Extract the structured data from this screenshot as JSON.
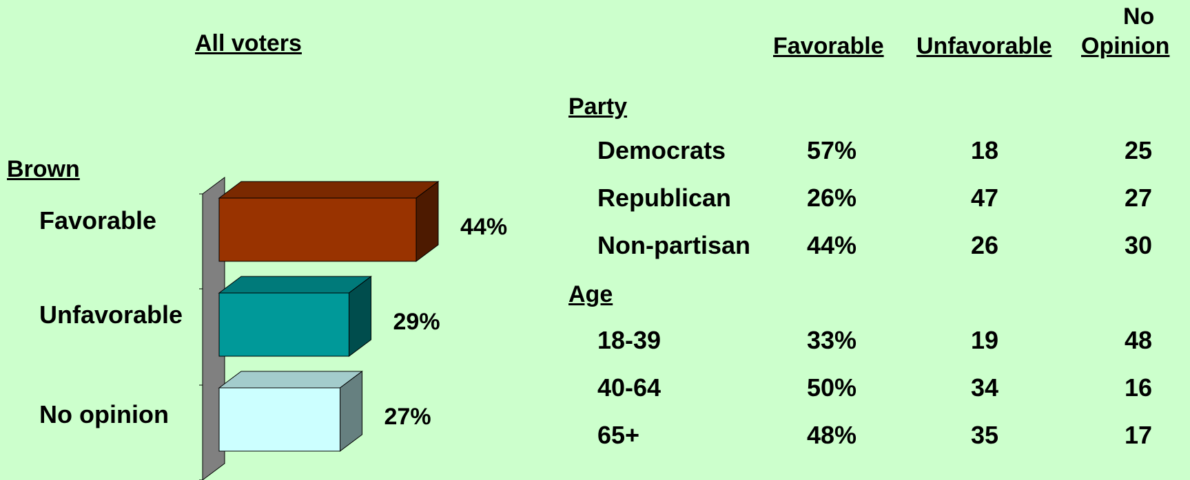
{
  "chart_data": {
    "type": "bar",
    "title": "All voters",
    "group_label": "Brown",
    "categories": [
      "Favorable",
      "Unfavorable",
      "No opinion"
    ],
    "values": [
      44,
      29,
      27
    ],
    "value_labels": [
      "44%",
      "29%",
      "27%"
    ],
    "colors": [
      "#993300",
      "#009999",
      "#ccffff"
    ],
    "orientation": "horizontal",
    "style": "3d"
  },
  "table": {
    "headers": {
      "favorable": "Favorable",
      "unfavorable": "Unfavorable",
      "no_opinion_line1": "No",
      "no_opinion_line2": "Opinion"
    },
    "groups": [
      {
        "label": "Party",
        "rows": [
          {
            "label": "Democrats",
            "favorable": "57%",
            "unfavorable": "18",
            "no_opinion": "25"
          },
          {
            "label": "Republican",
            "favorable": "26%",
            "unfavorable": "47",
            "no_opinion": "27"
          },
          {
            "label": "Non-partisan",
            "favorable": "44%",
            "unfavorable": "26",
            "no_opinion": "30"
          }
        ]
      },
      {
        "label": "Age",
        "rows": [
          {
            "label": "18-39",
            "favorable": "33%",
            "unfavorable": "19",
            "no_opinion": "48"
          },
          {
            "label": "40-64",
            "favorable": "50%",
            "unfavorable": "34",
            "no_opinion": "16"
          },
          {
            "label": "65+",
            "favorable": "48%",
            "unfavorable": "35",
            "no_opinion": "17"
          }
        ]
      }
    ]
  }
}
